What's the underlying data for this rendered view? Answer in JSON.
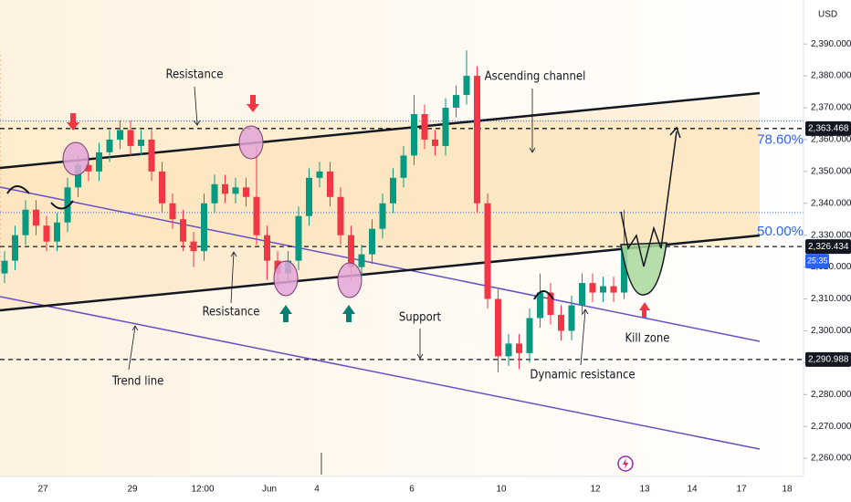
{
  "chart_data": {
    "type": "candlestick",
    "currency": "USD",
    "x_labels": [
      "27",
      "29",
      "12:00",
      "Jun",
      "4",
      "6",
      "10",
      "12",
      "13",
      "14",
      "17",
      "18"
    ],
    "open": [
      2318,
      2322,
      2330,
      2338,
      2333,
      2328,
      2334,
      2345,
      2352,
      2350,
      2356,
      2360,
      2363,
      2358,
      2360,
      2350,
      2340,
      2335,
      2328,
      2325,
      2340,
      2346,
      2343,
      2345,
      2342,
      2330,
      2322,
      2318,
      2322,
      2336,
      2348,
      2350,
      2342,
      2330,
      2320,
      2324,
      2332,
      2340,
      2348,
      2355,
      2368,
      2360,
      2358,
      2370,
      2374,
      2380,
      2340,
      2310,
      2292,
      2296,
      2293,
      2304,
      2312,
      2305,
      2300,
      2308,
      2315,
      2312,
      2314,
      2312
    ],
    "high": [
      2325,
      2333,
      2341,
      2341,
      2336,
      2337,
      2348,
      2355,
      2355,
      2359,
      2363,
      2366,
      2366,
      2363,
      2363,
      2353,
      2343,
      2338,
      2331,
      2343,
      2349,
      2349,
      2348,
      2348,
      2358,
      2333,
      2325,
      2325,
      2339,
      2351,
      2353,
      2353,
      2345,
      2333,
      2327,
      2335,
      2343,
      2351,
      2358,
      2374,
      2371,
      2363,
      2373,
      2377,
      2388,
      2383,
      2343,
      2313,
      2299,
      2299,
      2307,
      2318,
      2315,
      2308,
      2311,
      2318,
      2318,
      2317,
      2317,
      2338
    ],
    "low": [
      2315,
      2319,
      2327,
      2330,
      2325,
      2325,
      2331,
      2342,
      2347,
      2347,
      2353,
      2357,
      2355,
      2355,
      2347,
      2337,
      2332,
      2325,
      2320,
      2322,
      2337,
      2340,
      2340,
      2339,
      2327,
      2316,
      2313,
      2315,
      2319,
      2333,
      2345,
      2339,
      2327,
      2316,
      2317,
      2321,
      2329,
      2337,
      2345,
      2352,
      2357,
      2355,
      2355,
      2367,
      2371,
      2337,
      2307,
      2287,
      2289,
      2288,
      2290,
      2301,
      2302,
      2297,
      2297,
      2305,
      2309,
      2309,
      2309,
      2310
    ],
    "close": [
      2322,
      2330,
      2338,
      2333,
      2328,
      2334,
      2345,
      2352,
      2350,
      2356,
      2360,
      2363,
      2358,
      2360,
      2350,
      2340,
      2335,
      2328,
      2325,
      2340,
      2346,
      2343,
      2345,
      2342,
      2330,
      2322,
      2318,
      2322,
      2336,
      2348,
      2350,
      2342,
      2330,
      2320,
      2324,
      2332,
      2340,
      2348,
      2355,
      2368,
      2360,
      2358,
      2370,
      2374,
      2380,
      2340,
      2310,
      2292,
      2296,
      2293,
      2304,
      2312,
      2305,
      2300,
      2308,
      2315,
      2312,
      2314,
      2312,
      2326
    ],
    "up_color": "#089981",
    "down_color": "#f23645",
    "ylim": [
      2254.3,
      2403.8
    ],
    "yticks": [
      {
        "value": 2260,
        "label": "2,260.000"
      },
      {
        "value": 2270,
        "label": "2,270.000"
      },
      {
        "value": 2280,
        "label": "2,280.000"
      },
      {
        "value": 2290,
        "label": "2,290.000"
      },
      {
        "value": 2300,
        "label": "2,300.000"
      },
      {
        "value": 2310,
        "label": "2,310.000"
      },
      {
        "value": 2320,
        "label": "2,320.000"
      },
      {
        "value": 2330,
        "label": "2,330.000"
      },
      {
        "value": 2340,
        "label": "2,340.000"
      },
      {
        "value": 2350,
        "label": "2,350.000"
      },
      {
        "value": 2360,
        "label": "2,360.000"
      },
      {
        "value": 2370,
        "label": "2,370.000"
      },
      {
        "value": 2380,
        "label": "2,380.000"
      },
      {
        "value": 2390,
        "label": "2,390.000"
      }
    ],
    "price_levels": [
      {
        "value": 2363.468,
        "label": "2,363.468"
      },
      {
        "value": 2326.434,
        "label": "2,326.434"
      },
      {
        "value": 2290.988,
        "label": "2,290.988"
      }
    ],
    "countdown": "25:35",
    "fib_levels": [
      {
        "value": 78.6,
        "label": "78.60%",
        "price": 2365.8
      },
      {
        "value": 50,
        "label": "50.00%",
        "price": 2337.1
      }
    ],
    "annotations": [
      "Resistance",
      "Ascending channel",
      "Resistance",
      "Support",
      "Trend line",
      "Dynamic resistance",
      "Kill zone"
    ]
  }
}
